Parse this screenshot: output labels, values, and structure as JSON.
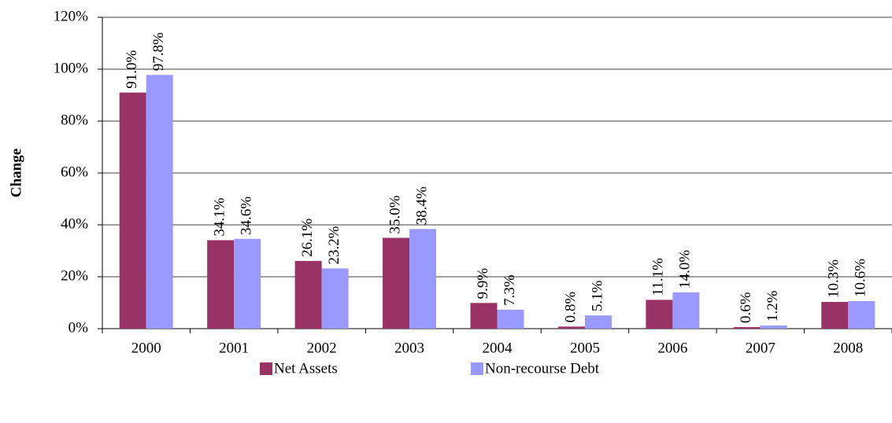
{
  "chart_data": {
    "type": "bar",
    "y_label": "Change",
    "categories": [
      "2000",
      "2001",
      "2002",
      "2003",
      "2004",
      "2005",
      "2006",
      "2007",
      "2008"
    ],
    "series": [
      {
        "name": "Net Assets",
        "color": "#993366",
        "values": [
          91.0,
          34.1,
          26.1,
          35.0,
          9.9,
          0.8,
          11.1,
          0.6,
          10.3
        ],
        "value_labels": [
          "91.0%",
          "34.1%",
          "26.1%",
          "35.0%",
          "9.9%",
          "0.8%",
          "11.1%",
          "0.6%",
          "10.3%"
        ]
      },
      {
        "name": "Non-recourse Debt",
        "color": "#9999ff",
        "values": [
          97.8,
          34.6,
          23.2,
          38.4,
          7.3,
          5.1,
          14.0,
          1.2,
          10.6
        ],
        "value_labels": [
          "97.8%",
          "34.6%",
          "23.2%",
          "38.4%",
          "7.3%",
          "5.1%",
          "14.0%",
          "1.2%",
          "10.6%"
        ]
      }
    ],
    "ylim": [
      0,
      120
    ],
    "yticks": [
      {
        "value": 0,
        "label": "0%"
      },
      {
        "value": 20,
        "label": "20%"
      },
      {
        "value": 40,
        "label": "40%"
      },
      {
        "value": 60,
        "label": "60%"
      },
      {
        "value": 80,
        "label": "80%"
      },
      {
        "value": 100,
        "label": "100%"
      },
      {
        "value": 120,
        "label": "120%"
      }
    ],
    "grid": true
  }
}
